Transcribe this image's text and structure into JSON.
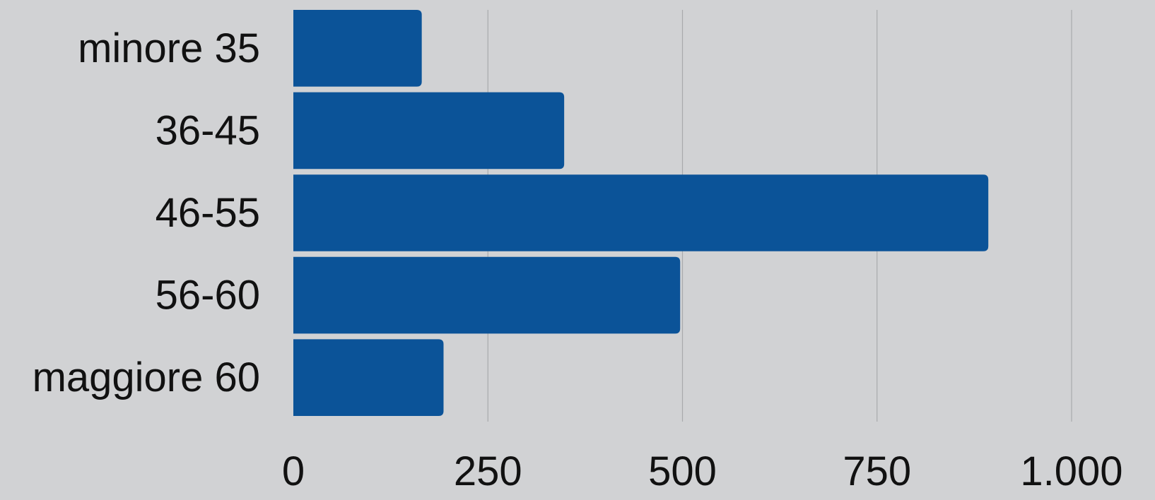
{
  "colors": {
    "background": "#d1d2d4",
    "bar": "#0b5398",
    "grid": "#a9aaac",
    "text": "#111111"
  },
  "chart_data": {
    "type": "bar",
    "orientation": "horizontal",
    "categories": [
      "minore 35",
      "36-45",
      "46-55",
      "56-60",
      "maggiore 60"
    ],
    "values": [
      165,
      348,
      893,
      497,
      193
    ],
    "xlim": [
      0,
      1000
    ],
    "xticks": [
      0,
      250,
      500,
      750,
      1000
    ],
    "xtick_labels": [
      "0",
      "250",
      "500",
      "750",
      "1.000"
    ],
    "title": "",
    "xlabel": "",
    "ylabel": "",
    "grid": "vertical",
    "legend": "none"
  }
}
